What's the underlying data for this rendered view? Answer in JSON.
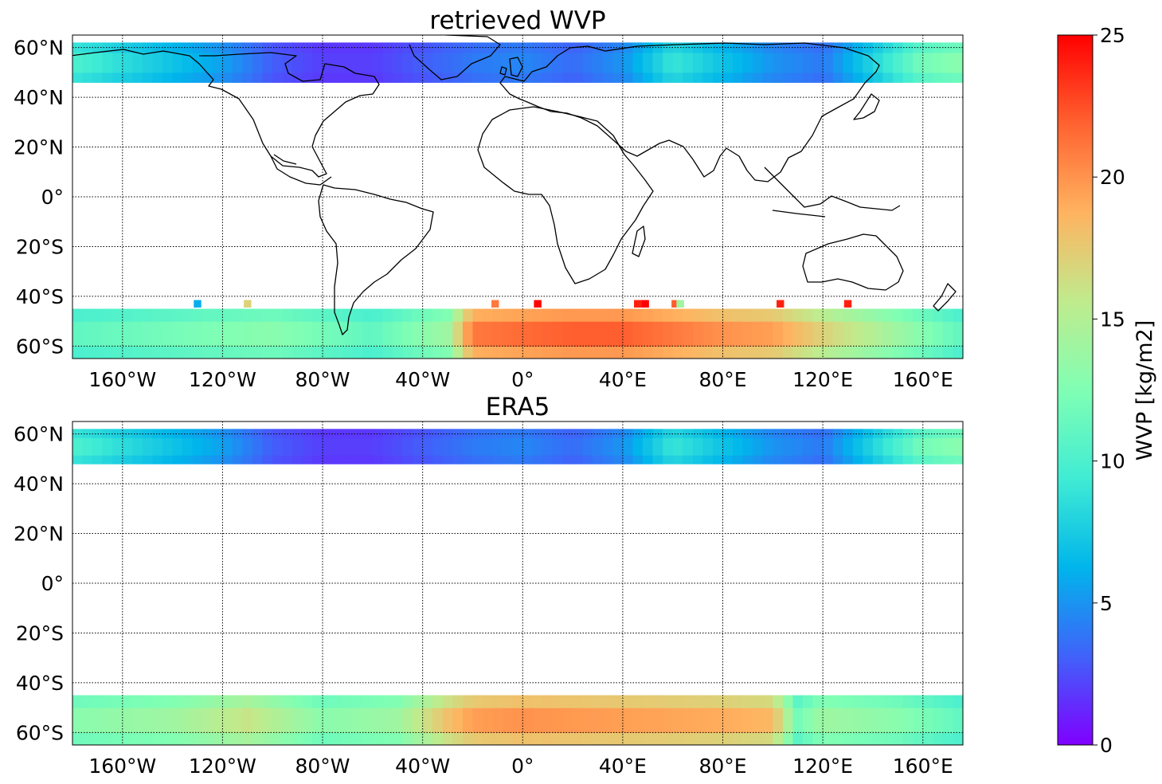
{
  "figure": {
    "panels": [
      {
        "id": "retrieved",
        "title": "retrieved WVP"
      },
      {
        "id": "era5",
        "title": "ERA5"
      }
    ],
    "lat_ticks": [
      "60°N",
      "40°N",
      "20°N",
      "0°",
      "20°S",
      "40°S",
      "60°S"
    ],
    "lon_ticks": [
      "160°W",
      "120°W",
      "80°W",
      "40°W",
      "0°",
      "40°E",
      "80°E",
      "120°E",
      "160°E"
    ]
  },
  "chart_data": {
    "type": "heatmap",
    "projection": "equirectangular",
    "map_extent": {
      "lon": [
        -180,
        176
      ],
      "lat": [
        -65,
        65
      ]
    },
    "lat_tick_values": [
      60,
      40,
      20,
      0,
      -20,
      -40,
      -60
    ],
    "lon_tick_values": [
      -160,
      -120,
      -80,
      -40,
      0,
      40,
      80,
      120,
      160
    ],
    "grid": "dotted",
    "panels": [
      {
        "title": "retrieved WVP",
        "bands": [
          {
            "lat": [
              46,
              62
            ],
            "profile": [
              [
                -180,
                10
              ],
              [
                -160,
                8.5
              ],
              [
                -140,
                7
              ],
              [
                -120,
                5.5
              ],
              [
                -100,
                3
              ],
              [
                -80,
                2
              ],
              [
                -60,
                2
              ],
              [
                -40,
                3
              ],
              [
                -20,
                4
              ],
              [
                0,
                4.5
              ],
              [
                20,
                3.5
              ],
              [
                40,
                5
              ],
              [
                60,
                9
              ],
              [
                80,
                7
              ],
              [
                100,
                5
              ],
              [
                120,
                4
              ],
              [
                140,
                8
              ],
              [
                160,
                12
              ],
              [
                176,
                13
              ]
            ]
          },
          {
            "lat": [
              -65,
              -45
            ],
            "profile": [
              [
                -180,
                11
              ],
              [
                -140,
                12
              ],
              [
                -100,
                13
              ],
              [
                -60,
                11
              ],
              [
                -30,
                14
              ],
              [
                -20,
                21
              ],
              [
                0,
                21.5
              ],
              [
                20,
                22
              ],
              [
                40,
                22
              ],
              [
                60,
                21
              ],
              [
                80,
                20
              ],
              [
                100,
                19.5
              ],
              [
                120,
                17
              ],
              [
                140,
                15
              ],
              [
                176,
                11
              ]
            ]
          }
        ],
        "outliers": [
          {
            "lon": -130,
            "lat": -43,
            "value": 6
          },
          {
            "lon": -110,
            "lat": -43,
            "value": 17
          },
          {
            "lon": -11,
            "lat": -43,
            "value": 21
          },
          {
            "lon": 6,
            "lat": -43,
            "value": 25
          },
          {
            "lon": 46,
            "lat": -43,
            "value": 24
          },
          {
            "lon": 49,
            "lat": -43,
            "value": 25
          },
          {
            "lon": 61,
            "lat": -43,
            "value": 22
          },
          {
            "lon": 63,
            "lat": -43,
            "value": 14
          },
          {
            "lon": 103,
            "lat": -43,
            "value": 24
          },
          {
            "lon": 130,
            "lat": -43,
            "value": 24
          }
        ]
      },
      {
        "title": "ERA5",
        "bands": [
          {
            "lat": [
              48,
              62
            ],
            "profile": [
              [
                -180,
                10
              ],
              [
                -160,
                8.5
              ],
              [
                -140,
                7
              ],
              [
                -120,
                5.5
              ],
              [
                -100,
                3
              ],
              [
                -80,
                2
              ],
              [
                -60,
                2
              ],
              [
                -40,
                3
              ],
              [
                -20,
                4
              ],
              [
                0,
                4.5
              ],
              [
                20,
                3.5
              ],
              [
                40,
                5
              ],
              [
                60,
                9
              ],
              [
                80,
                7
              ],
              [
                100,
                5
              ],
              [
                120,
                4
              ],
              [
                140,
                8
              ],
              [
                160,
                12
              ],
              [
                176,
                13
              ]
            ]
          },
          {
            "lat": [
              -65,
              -45
            ],
            "profile": [
              [
                -180,
                13
              ],
              [
                -140,
                14
              ],
              [
                -110,
                16
              ],
              [
                -80,
                13
              ],
              [
                -50,
                14
              ],
              [
                -30,
                18
              ],
              [
                -20,
                19.5
              ],
              [
                0,
                20
              ],
              [
                40,
                19.5
              ],
              [
                80,
                19
              ],
              [
                100,
                18.5
              ],
              [
                110,
                12
              ],
              [
                120,
                14
              ],
              [
                150,
                13
              ],
              [
                176,
                11
              ]
            ]
          }
        ],
        "outliers": []
      }
    ],
    "colorbar": {
      "label": "WVP [kg/m2]",
      "range": [
        0,
        25
      ],
      "ticks": [
        "0",
        "5",
        "10",
        "15",
        "20",
        "25"
      ],
      "colormap": "rainbow"
    }
  }
}
